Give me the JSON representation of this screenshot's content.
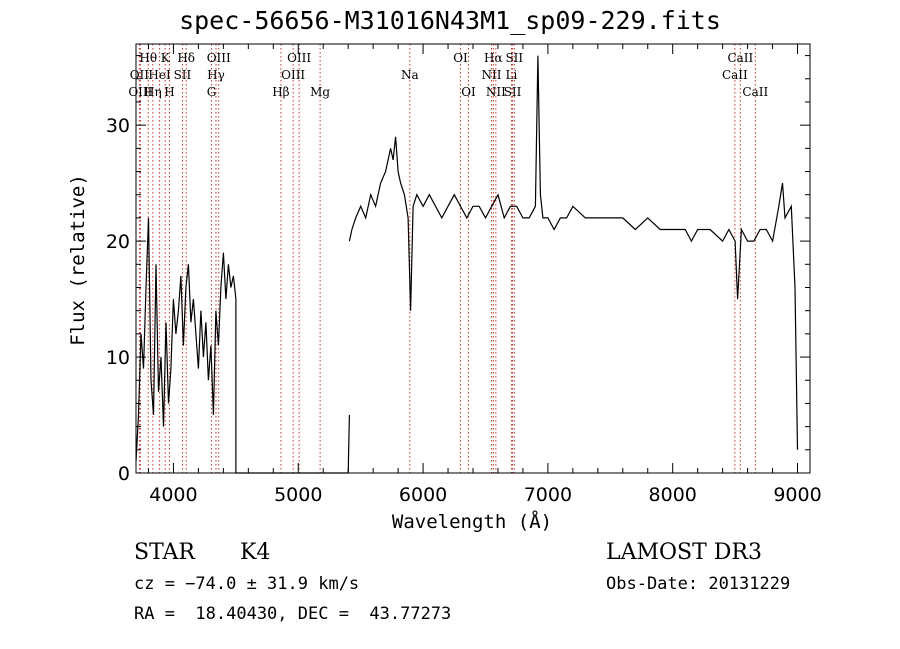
{
  "title": "spec-56656-M31016N43M1_sp09-229.fits",
  "footer": {
    "class_label": "STAR",
    "subclass": "K4",
    "survey": "LAMOST DR3",
    "cz": "cz = −74.0 ± 31.9 km/s",
    "obs_date": "Obs-Date: 20131229",
    "radec": "RA =  18.40430, DEC =  43.77273"
  },
  "colors": {
    "spectrum": "#000000",
    "line_markers": "#c0392b",
    "axes": "#000000"
  },
  "chart_data": {
    "type": "line",
    "title": "spec-56656-M31016N43M1_sp09-229.fits",
    "xlabel": "Wavelength (Å)",
    "ylabel": "Flux (relative)",
    "xlim": [
      3700,
      9100
    ],
    "ylim": [
      0,
      37
    ],
    "xticks": [
      4000,
      5000,
      6000,
      7000,
      8000,
      9000
    ],
    "yticks": [
      0,
      10,
      20,
      30
    ],
    "grid": false,
    "series": [
      {
        "segments": [
          {
            "x": [
              3700,
              3720,
              3740,
              3760,
              3780,
              3800,
              3820,
              3840,
              3860,
              3880,
              3900,
              3920,
              3940,
              3960,
              3980,
              4000,
              4020,
              4040,
              4060,
              4080,
              4100,
              4120,
              4140,
              4160,
              4180,
              4200,
              4220,
              4240,
              4260,
              4280,
              4300,
              4320,
              4340,
              4360,
              4380,
              4400,
              4420,
              4440,
              4460,
              4480,
              4500
            ],
            "y": [
              1,
              5,
              12,
              9,
              16,
              22,
              8,
              5,
              18,
              7,
              10,
              4,
              13,
              6,
              9,
              15,
              12,
              14,
              17,
              11,
              16,
              18,
              13,
              15,
              12,
              9,
              14,
              10,
              13,
              8,
              11,
              5,
              14,
              11,
              16,
              19,
              15,
              18,
              16,
              17,
              15
            ]
          },
          {
            "x": [
              4500,
              4500,
              5400,
              5410
            ],
            "y": [
              15,
              0,
              0,
              5
            ]
          },
          {
            "x": [
              5410,
              5430,
              5460,
              5500,
              5540,
              5580,
              5620,
              5660,
              5700,
              5740,
              5760,
              5780,
              5800,
              5820,
              5850,
              5880,
              5900,
              5920,
              5950,
              6000,
              6050,
              6100,
              6150,
              6200,
              6250,
              6300,
              6350,
              6400,
              6450,
              6500,
              6550,
              6600,
              6650,
              6700,
              6750,
              6800,
              6850,
              6900,
              6920,
              6940,
              6960,
              7000,
              7050,
              7100,
              7150,
              7200,
              7300,
              7400,
              7500,
              7600,
              7700,
              7800,
              7900,
              8000,
              8100,
              8150,
              8200,
              8300,
              8400,
              8450,
              8500,
              8520,
              8550,
              8600,
              8650,
              8700,
              8750,
              8800,
              8850,
              8880,
              8900,
              8950,
              8980,
              9000
            ],
            "y": [
              20,
              21,
              22,
              23,
              22,
              24,
              23,
              25,
              26,
              28,
              27,
              29,
              26,
              25,
              24,
              22,
              14,
              23,
              24,
              23,
              24,
              23,
              22,
              23,
              24,
              23,
              22,
              23,
              23,
              22,
              23,
              24,
              22,
              23,
              23,
              22,
              22,
              23,
              36,
              24,
              22,
              22,
              21,
              22,
              22,
              23,
              22,
              22,
              22,
              22,
              21,
              22,
              21,
              21,
              21,
              20,
              21,
              21,
              20,
              21,
              20,
              15,
              21,
              20,
              20,
              21,
              21,
              20,
              23,
              25,
              22,
              23,
              16,
              2
            ]
          }
        ]
      }
    ],
    "spectral_lines": [
      {
        "name": "Hθ",
        "x": 3798,
        "row": 1
      },
      {
        "name": "OII",
        "x": 3727,
        "row": 2
      },
      {
        "name": "OIII",
        "x": 3735,
        "row": 3
      },
      {
        "name": "Hη",
        "x": 3835,
        "row": 3
      },
      {
        "name": "HeI",
        "x": 3889,
        "row": 2
      },
      {
        "name": "K",
        "x": 3934,
        "row": 1
      },
      {
        "name": "H",
        "x": 3968,
        "row": 3
      },
      {
        "name": "SII",
        "x": 4072,
        "row": 2
      },
      {
        "name": "Hδ",
        "x": 4102,
        "row": 1
      },
      {
        "name": "G",
        "x": 4305,
        "row": 3
      },
      {
        "name": "Hγ",
        "x": 4341,
        "row": 2
      },
      {
        "name": "OIII",
        "x": 4363,
        "row": 1
      },
      {
        "name": "Hβ",
        "x": 4861,
        "row": 3
      },
      {
        "name": "OIII",
        "x": 4959,
        "row": 2
      },
      {
        "name": "OIII",
        "x": 5007,
        "row": 1
      },
      {
        "name": "Mg",
        "x": 5175,
        "row": 3
      },
      {
        "name": "Na",
        "x": 5894,
        "row": 2
      },
      {
        "name": "OI",
        "x": 6300,
        "row": 1
      },
      {
        "name": "OI",
        "x": 6364,
        "row": 3
      },
      {
        "name": "NII",
        "x": 6548,
        "row": 2
      },
      {
        "name": "Hα",
        "x": 6563,
        "row": 1
      },
      {
        "name": "NII",
        "x": 6583,
        "row": 3
      },
      {
        "name": "Li",
        "x": 6708,
        "row": 2
      },
      {
        "name": "SII",
        "x": 6717,
        "row": 3
      },
      {
        "name": "SII",
        "x": 6731,
        "row": 1
      },
      {
        "name": "CaII",
        "x": 8498,
        "row": 2
      },
      {
        "name": "CaII",
        "x": 8542,
        "row": 1
      },
      {
        "name": "CaII",
        "x": 8662,
        "row": 3
      }
    ]
  }
}
